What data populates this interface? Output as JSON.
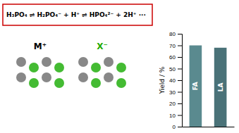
{
  "chart_data": {
    "type": "bar",
    "categories": [
      "FA",
      "LA"
    ],
    "values": [
      70,
      68
    ],
    "colors": [
      "#5a8a8f",
      "#4a7278"
    ],
    "ylabel": "Yield / %",
    "ylim": [
      0,
      80
    ],
    "yticks": [
      0,
      10,
      20,
      30,
      40,
      50,
      60,
      70,
      80
    ],
    "tick_labels": "y",
    "annotations": [
      "H₃PO₄ ⇌ H₂PO₄⁻ + H⁺ ⇌ HPO₄²⁻ + 2H⁺ ···",
      "M⁺",
      "X⁻"
    ]
  }
}
